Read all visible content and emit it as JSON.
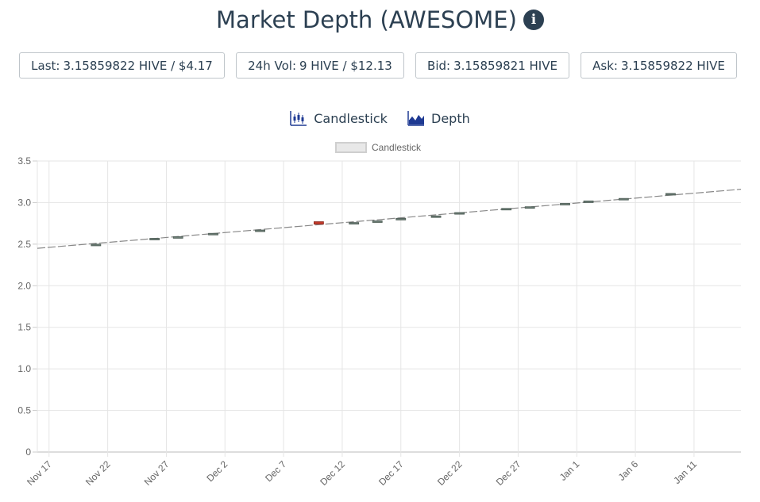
{
  "header": {
    "title": "Market Depth (AWESOME)",
    "info_icon": "info-icon"
  },
  "stats": [
    {
      "label": "Last:",
      "value": "3.15859822 HIVE / $4.17"
    },
    {
      "label": "24h Vol:",
      "value": "9 HIVE / $12.13"
    },
    {
      "label": "Bid:",
      "value": "3.15859821 HIVE"
    },
    {
      "label": "Ask:",
      "value": "3.15859822 HIVE"
    }
  ],
  "tabs": [
    {
      "label": "Candlestick",
      "icon": "candlestick-icon"
    },
    {
      "label": "Depth",
      "icon": "depth-chart-icon"
    }
  ],
  "colors": {
    "text": "#2c4052",
    "accent": "#1f3a93",
    "up": "#6b7c74",
    "down": "#c0392b",
    "grid": "#e5e5e5"
  },
  "chart_data": {
    "type": "candlestick",
    "legend": {
      "label": "Candlestick",
      "position": "top-center"
    },
    "ylim": [
      0,
      3.5
    ],
    "yticks": [
      "0",
      "0.5",
      "1.0",
      "1.5",
      "2.0",
      "2.5",
      "3.0",
      "3.5"
    ],
    "xrange": [
      "2021-11-16",
      "2022-01-15"
    ],
    "xticks": [
      "Nov 17",
      "Nov 22",
      "Nov 27",
      "Dec 2",
      "Dec 7",
      "Dec 12",
      "Dec 17",
      "Dec 22",
      "Dec 27",
      "Jan 1",
      "Jan 6",
      "Jan 11"
    ],
    "grid": true,
    "trend_line": {
      "start": [
        "2021-11-16",
        2.45
      ],
      "end": [
        "2022-01-15",
        3.16
      ]
    },
    "candles": [
      {
        "date": "2021-11-21",
        "open": 2.48,
        "close": 2.5,
        "high": 2.51,
        "low": 2.48
      },
      {
        "date": "2021-11-26",
        "open": 2.56,
        "close": 2.57,
        "high": 2.57,
        "low": 2.56
      },
      {
        "date": "2021-11-28",
        "open": 2.58,
        "close": 2.59,
        "high": 2.59,
        "low": 2.58
      },
      {
        "date": "2021-12-01",
        "open": 2.62,
        "close": 2.63,
        "high": 2.63,
        "low": 2.62
      },
      {
        "date": "2021-12-05",
        "open": 2.66,
        "close": 2.67,
        "high": 2.67,
        "low": 2.66
      },
      {
        "date": "2021-12-10",
        "open": 2.77,
        "close": 2.74,
        "high": 2.77,
        "low": 2.74
      },
      {
        "date": "2021-12-13",
        "open": 2.75,
        "close": 2.76,
        "high": 2.76,
        "low": 2.75
      },
      {
        "date": "2021-12-15",
        "open": 2.77,
        "close": 2.78,
        "high": 2.78,
        "low": 2.77
      },
      {
        "date": "2021-12-17",
        "open": 2.8,
        "close": 2.81,
        "high": 2.81,
        "low": 2.8
      },
      {
        "date": "2021-12-20",
        "open": 2.83,
        "close": 2.84,
        "high": 2.84,
        "low": 2.83
      },
      {
        "date": "2021-12-22",
        "open": 2.86,
        "close": 2.88,
        "high": 2.88,
        "low": 2.86
      },
      {
        "date": "2021-12-26",
        "open": 2.92,
        "close": 2.93,
        "high": 2.93,
        "low": 2.92
      },
      {
        "date": "2021-12-28",
        "open": 2.94,
        "close": 2.95,
        "high": 2.95,
        "low": 2.94
      },
      {
        "date": "2021-12-31",
        "open": 2.98,
        "close": 2.99,
        "high": 2.99,
        "low": 2.98
      },
      {
        "date": "2022-01-02",
        "open": 3.0,
        "close": 3.02,
        "high": 3.02,
        "low": 3.0
      },
      {
        "date": "2022-01-05",
        "open": 3.04,
        "close": 3.05,
        "high": 3.05,
        "low": 3.04
      },
      {
        "date": "2022-01-09",
        "open": 3.09,
        "close": 3.11,
        "high": 3.11,
        "low": 3.09
      }
    ]
  }
}
